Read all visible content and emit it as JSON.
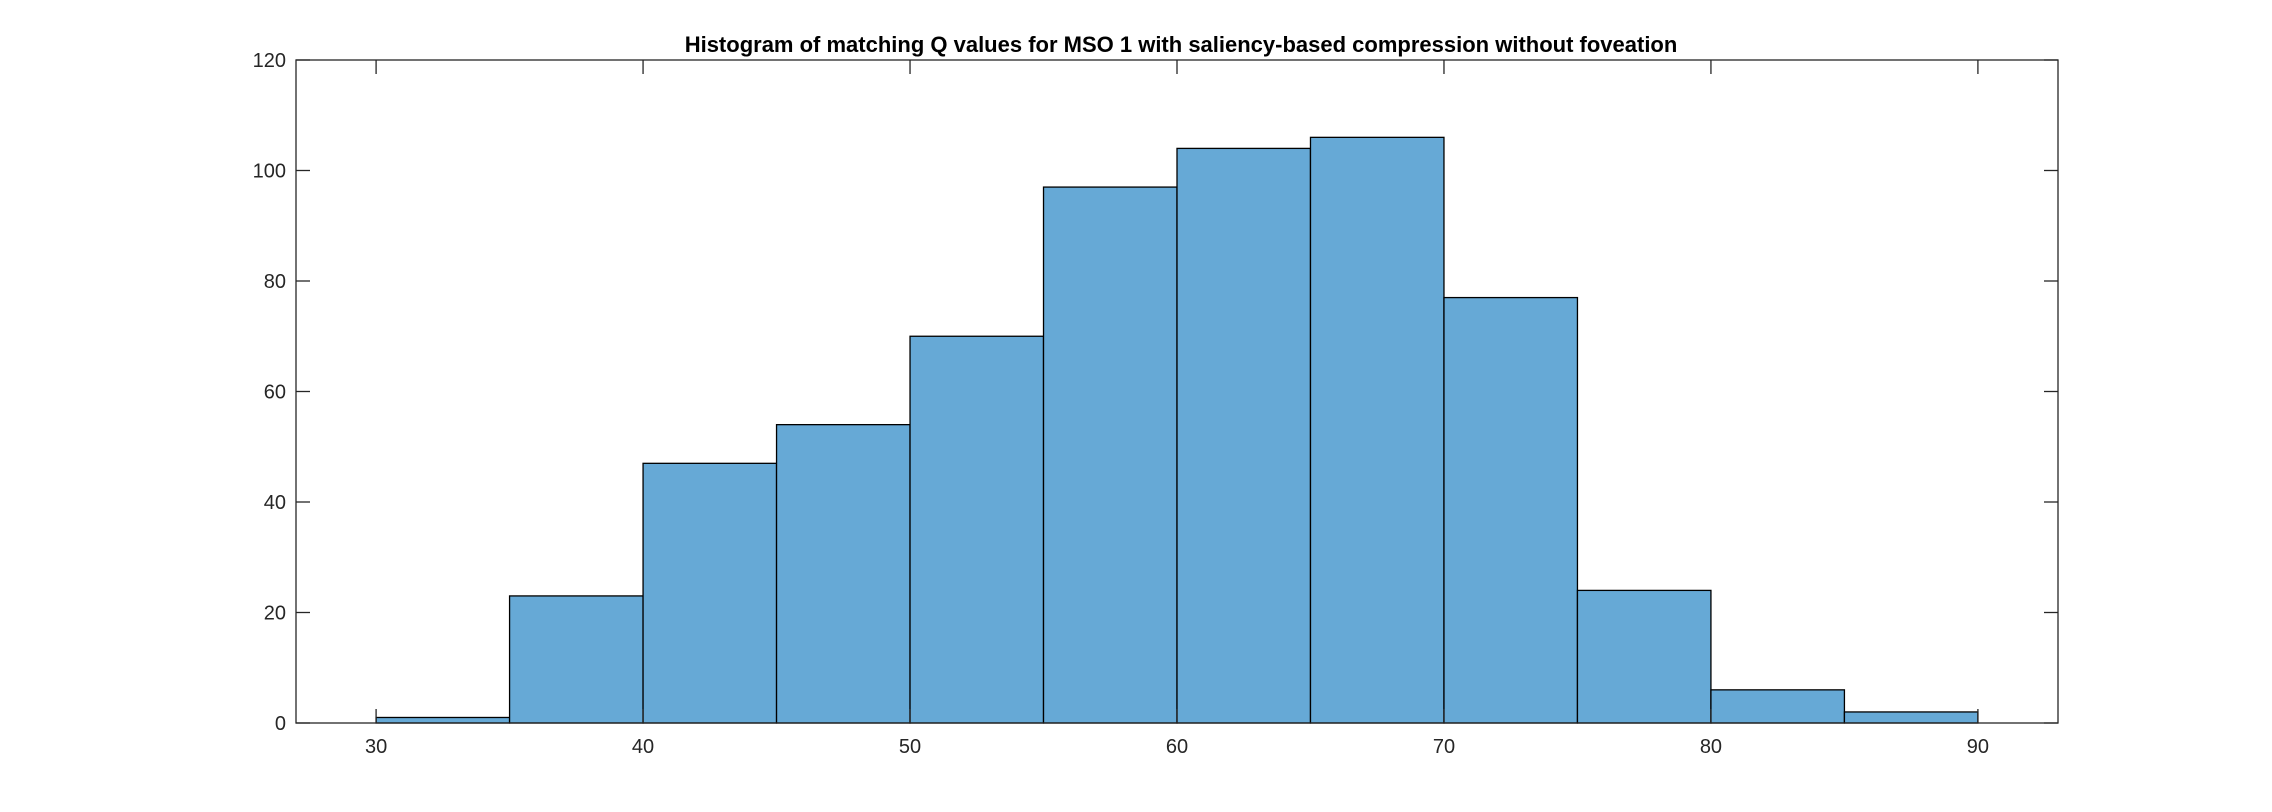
{
  "chart_data": {
    "type": "bar",
    "title": "Histogram of matching Q values for MSO 1 with saliency-based compression without foveation",
    "xlabel": "",
    "ylabel": "",
    "bin_width": 5,
    "bins": [
      {
        "x0": 30,
        "x1": 35,
        "count": 1
      },
      {
        "x0": 35,
        "x1": 40,
        "count": 23
      },
      {
        "x0": 40,
        "x1": 45,
        "count": 47
      },
      {
        "x0": 45,
        "x1": 50,
        "count": 54
      },
      {
        "x0": 50,
        "x1": 55,
        "count": 70
      },
      {
        "x0": 55,
        "x1": 60,
        "count": 97
      },
      {
        "x0": 60,
        "x1": 65,
        "count": 104
      },
      {
        "x0": 65,
        "x1": 70,
        "count": 106
      },
      {
        "x0": 70,
        "x1": 75,
        "count": 77
      },
      {
        "x0": 75,
        "x1": 80,
        "count": 24
      },
      {
        "x0": 80,
        "x1": 85,
        "count": 6
      },
      {
        "x0": 85,
        "x1": 90,
        "count": 2
      }
    ],
    "xlim": [
      27,
      93
    ],
    "ylim": [
      0,
      120
    ],
    "xticks": [
      "30",
      "40",
      "50",
      "60",
      "70",
      "80",
      "90"
    ],
    "yticks": [
      "0",
      "20",
      "40",
      "60",
      "80",
      "100",
      "120"
    ],
    "grid": false,
    "legend": "none",
    "bar_color": "#66A9D6",
    "edge_color": "#000000"
  }
}
